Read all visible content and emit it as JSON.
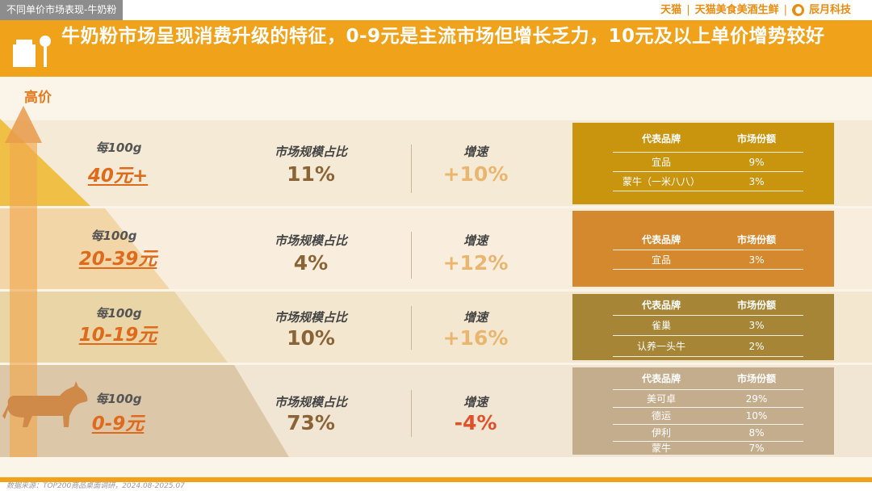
{
  "top": {
    "section_tag": "不同单价市场表现-牛奶粉",
    "brand1": "天猫",
    "brand2": "天猫美食美酒生鲜",
    "brand3": "辰月科技",
    "separator": "|"
  },
  "header": {
    "title": "牛奶粉市场呈现消费升级的特征，0-9元是主流市场但增长乏力，10元及以上单价增势较好"
  },
  "axis": {
    "high_label": "高价"
  },
  "colors": {
    "header": "#f0a21a",
    "tier1_box": "#c9950f",
    "tier2_box": "#d4892f",
    "tier3_box": "#a68536",
    "tier4_box": "#c4ad8c"
  },
  "tiers": [
    {
      "unit": "每100g",
      "price": "40元+",
      "share_label": "市场规模占比",
      "share": "11%",
      "growth_label": "增速",
      "growth": "+10%",
      "brand_header": "代表品牌",
      "market_header": "市场份额",
      "brands": [
        {
          "name": "宜品",
          "share": "9%"
        },
        {
          "name": "蒙牛（一米八八）",
          "share": "3%"
        }
      ]
    },
    {
      "unit": "每100g",
      "price": "20-39元",
      "share_label": "市场规模占比",
      "share": "4%",
      "growth_label": "增速",
      "growth": "+12%",
      "brand_header": "代表品牌",
      "market_header": "市场份额",
      "brands": [
        {
          "name": "宜品",
          "share": "3%"
        }
      ]
    },
    {
      "unit": "每100g",
      "price": "10-19元",
      "share_label": "市场规模占比",
      "share": "10%",
      "growth_label": "增速",
      "growth": "+16%",
      "brand_header": "代表品牌",
      "market_header": "市场份额",
      "brands": [
        {
          "name": "雀巢",
          "share": "3%"
        },
        {
          "name": "认养一头牛",
          "share": "2%"
        }
      ]
    },
    {
      "unit": "每100g",
      "price": "0-9元",
      "share_label": "市场规模占比",
      "share": "73%",
      "growth_label": "增速",
      "growth": "-4%",
      "brand_header": "代表品牌",
      "market_header": "市场份额",
      "brands": [
        {
          "name": "美可卓",
          "share": "29%"
        },
        {
          "name": "德运",
          "share": "10%"
        },
        {
          "name": "伊利",
          "share": "8%"
        },
        {
          "name": "蒙牛",
          "share": "7%"
        }
      ]
    }
  ],
  "footer": {
    "source": "数据来源：TOP200商品桌面调研，2024.08-2025.07"
  }
}
